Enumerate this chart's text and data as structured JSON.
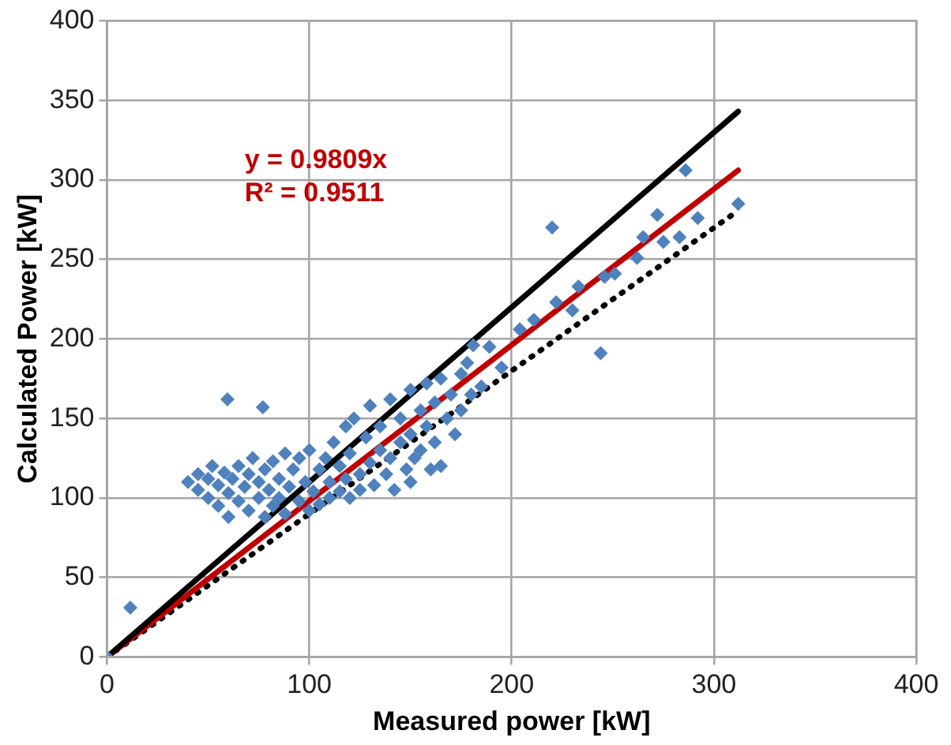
{
  "chart_data": {
    "type": "scatter",
    "xlabel": "Measured power [kW]",
    "ylabel": "Calculated Power [kW]",
    "xlim": [
      0,
      400
    ],
    "xticks": [
      0,
      100,
      200,
      300,
      400
    ],
    "ylim": [
      0,
      400
    ],
    "yticks": [
      0,
      50,
      100,
      150,
      200,
      250,
      300,
      350,
      400
    ],
    "grid": true,
    "legend": false,
    "marker": "diamond",
    "annotations": [
      "y = 0.9809x",
      "R² = 0.9511"
    ],
    "series": [
      {
        "color": "#4f81bd",
        "x": [
          0,
          11.5,
          59.5,
          77,
          40,
          45,
          45,
          50,
          50,
          52,
          55,
          55,
          58,
          60,
          60,
          62,
          65,
          65,
          68,
          70,
          70,
          72,
          75,
          75,
          78,
          78,
          80,
          82,
          82,
          85,
          85,
          88,
          88,
          90,
          92,
          95,
          95,
          98,
          100,
          100,
          102,
          105,
          105,
          108,
          110,
          110,
          112,
          115,
          115,
          118,
          118,
          120,
          120,
          122,
          125,
          125,
          128,
          130,
          130,
          132,
          135,
          135,
          138,
          140,
          140,
          142,
          145,
          145,
          148,
          150,
          150,
          150,
          152,
          155,
          155,
          158,
          158,
          160,
          162,
          162,
          165,
          165,
          168,
          170,
          172,
          175,
          175,
          178,
          180,
          185,
          181,
          189,
          195,
          204,
          211,
          222,
          230,
          233,
          246,
          251,
          262,
          265,
          275,
          283,
          272,
          292,
          220,
          244,
          286,
          312
        ],
        "values": [
          0,
          31,
          162,
          157,
          110,
          105,
          115,
          100,
          112,
          120,
          95,
          108,
          116,
          103,
          88,
          112,
          98,
          120,
          107,
          92,
          115,
          125,
          100,
          110,
          88,
          118,
          105,
          95,
          123,
          112,
          100,
          90,
          128,
          107,
          118,
          98,
          125,
          110,
          92,
          130,
          104,
          118,
          96,
          125,
          110,
          100,
          135,
          120,
          104,
          145,
          112,
          100,
          128,
          150,
          115,
          105,
          138,
          158,
          122,
          108,
          145,
          130,
          115,
          162,
          125,
          105,
          150,
          135,
          118,
          168,
          140,
          110,
          125,
          155,
          130,
          172,
          145,
          118,
          160,
          135,
          120,
          175,
          150,
          165,
          140,
          178,
          155,
          185,
          165,
          170,
          196,
          195,
          182,
          206,
          212,
          223,
          218,
          233,
          239,
          241,
          251,
          264,
          261,
          264,
          278,
          276,
          270,
          191,
          306,
          285
        ]
      },
      {
        "type": "line",
        "color": "#000000",
        "marker": "none",
        "line_style": "solid",
        "x": [
          0,
          312
        ],
        "values": [
          0,
          343
        ]
      },
      {
        "type": "line",
        "color": "#c00000",
        "marker": "none",
        "line_style": "solid",
        "x": [
          0,
          312
        ],
        "values": [
          0,
          306
        ]
      },
      {
        "type": "line",
        "color": "#000000",
        "marker": "none",
        "line_style": "dotted",
        "x": [
          0,
          309
        ],
        "values": [
          0,
          278
        ]
      }
    ]
  }
}
